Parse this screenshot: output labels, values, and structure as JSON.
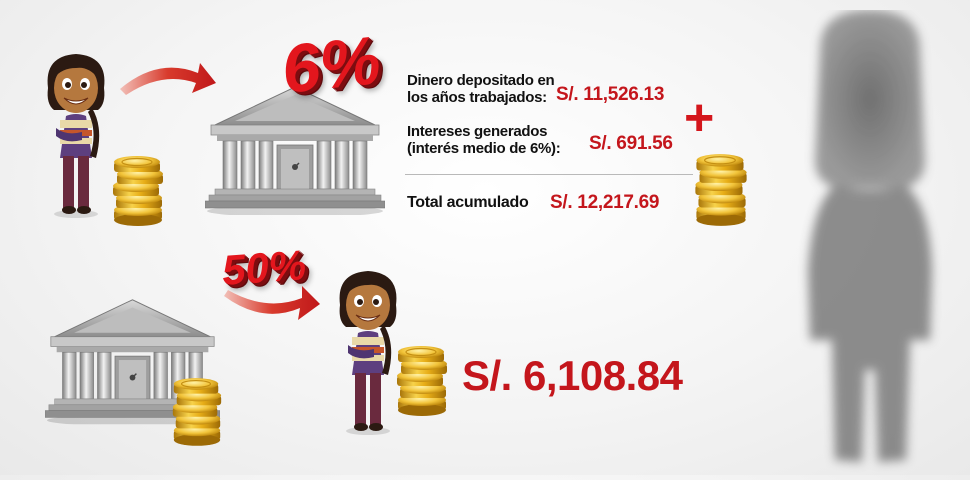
{
  "scene1": {
    "percent_badge": "6%",
    "rows": [
      {
        "label_line1": "Dinero depositado en",
        "label_line2": "los años trabajados:",
        "amount": "S/. 11,526.13"
      },
      {
        "label_line1": "Intereses generados",
        "label_line2": "(interés medio de 6%):",
        "amount": "S/. 691.56"
      }
    ],
    "plus_sign": "+",
    "total_label": "Total acumulado",
    "total_amount": "S/. 12,217.69"
  },
  "scene2": {
    "percent_badge": "50%",
    "amount": "S/. 6,108.84"
  },
  "colors": {
    "accent_red": "#c4161c",
    "badge_red": "#e3161d",
    "gold": "#e8b21a",
    "bank_gray": "#9a9a9a",
    "shirt_purple": "#5d3f7f"
  },
  "icons": {
    "woman": "woman-character-icon",
    "bank": "bank-building-icon",
    "coins": "gold-coins-icon",
    "arrow": "curved-arrow-icon",
    "silhouette": "shadow-silhouette-icon"
  }
}
